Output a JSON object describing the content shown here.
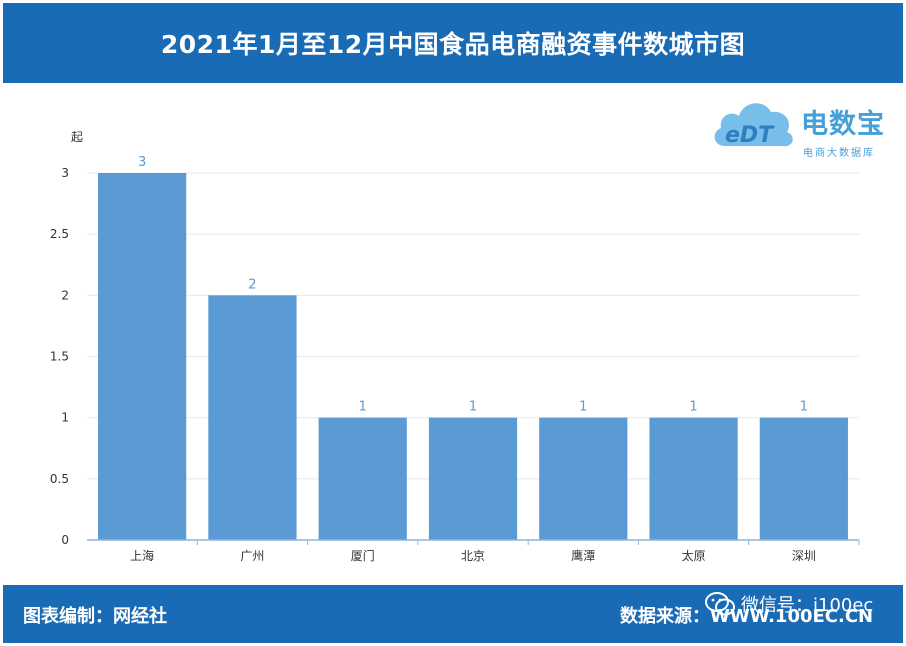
{
  "header": {
    "title": "2021年1月至12月中国食品电商融资事件数城市图"
  },
  "logo": {
    "name": "电数宝",
    "subtitle": "电商大数据库",
    "badge": "eDT"
  },
  "footer": {
    "editor": "图表编制：网经社",
    "source": "数据来源：WWW.100EC.CN",
    "wechat": "微信号：i100ec"
  },
  "colors": {
    "header_bg": "#1a6bb5",
    "bar": "#5b9bd5",
    "label": "#5b9bd5"
  },
  "chart_data": {
    "type": "bar",
    "title": "2021年1月至12月中国食品电商融资事件数城市图",
    "xlabel": "",
    "ylabel": "起",
    "categories": [
      "上海",
      "广州",
      "厦门",
      "北京",
      "鹰潭",
      "太原",
      "深圳"
    ],
    "series": [
      {
        "values": [
          3,
          2,
          1,
          1,
          1,
          1,
          1
        ]
      }
    ],
    "yticks": [
      "0",
      "0.5",
      "1",
      "1.5",
      "2",
      "2.5",
      "3"
    ],
    "ylim": [
      0,
      3
    ],
    "grid": true,
    "data_labels": true
  }
}
